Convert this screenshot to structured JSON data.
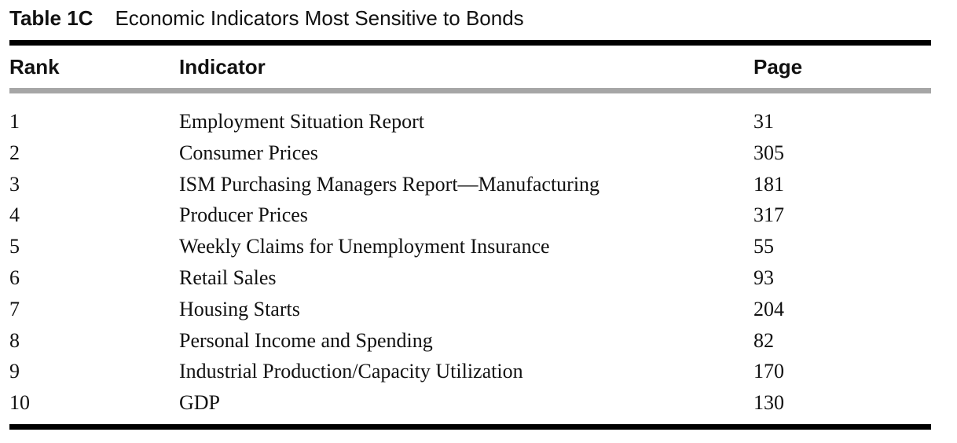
{
  "caption": {
    "label": "Table 1C",
    "title": "Economic Indicators Most Sensitive to Bonds"
  },
  "table": {
    "headers": {
      "rank": "Rank",
      "indicator": "Indicator",
      "page": "Page"
    },
    "rows": [
      {
        "rank": "1",
        "indicator": "Employment Situation Report",
        "page": "31"
      },
      {
        "rank": "2",
        "indicator": "Consumer Prices",
        "page": "305"
      },
      {
        "rank": "3",
        "indicator": "ISM Purchasing Managers Report—Manufacturing",
        "page": "181"
      },
      {
        "rank": "4",
        "indicator": "Producer Prices",
        "page": "317"
      },
      {
        "rank": "5",
        "indicator": "Weekly Claims for Unemployment Insurance",
        "page": "55"
      },
      {
        "rank": "6",
        "indicator": "Retail Sales",
        "page": "93"
      },
      {
        "rank": "7",
        "indicator": "Housing Starts",
        "page": "204"
      },
      {
        "rank": "8",
        "indicator": "Personal Income and Spending",
        "page": "82"
      },
      {
        "rank": "9",
        "indicator": "Industrial Production/Capacity Utilization",
        "page": "170"
      },
      {
        "rank": "10",
        "indicator": "GDP",
        "page": "130"
      }
    ]
  }
}
